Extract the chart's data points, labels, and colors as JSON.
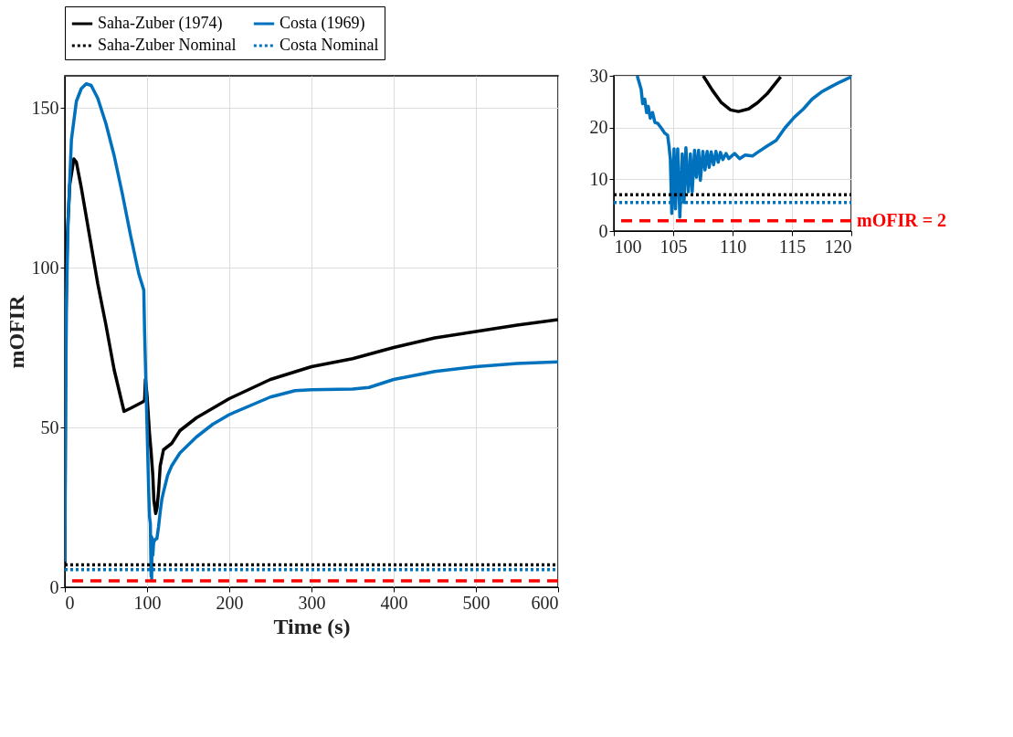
{
  "chart_data": [
    {
      "type": "line",
      "xlabel": "Time (s)",
      "ylabel": "mOFIR",
      "xlim": [
        0,
        600
      ],
      "ylim": [
        0,
        160
      ],
      "xticks": [
        0,
        100,
        200,
        300,
        400,
        500,
        600
      ],
      "yticks": [
        0,
        50,
        100,
        150
      ],
      "grid": true,
      "legend": "top",
      "line_style": "solid",
      "marker": "none",
      "series": [
        {
          "name": "Saha-Zuber (1974)",
          "color": "#000000",
          "x": [
            0,
            1,
            3,
            6,
            11,
            14,
            20,
            30,
            40,
            50,
            60,
            72,
            80,
            95,
            97,
            98,
            100,
            103,
            105,
            107,
            108.3,
            110.5,
            112.1,
            114,
            116,
            120,
            125,
            130,
            140,
            160,
            200,
            250,
            300,
            350,
            400,
            450,
            500,
            550,
            600
          ],
          "values": [
            7,
            80,
            110,
            126,
            134,
            133,
            125,
            110,
            95,
            82,
            68,
            55,
            56,
            58,
            58.5,
            65,
            60,
            48,
            42,
            35,
            27.2,
            23.1,
            24.8,
            30,
            38,
            43,
            44,
            45,
            49,
            53,
            59,
            65,
            69,
            71.5,
            75,
            78,
            80,
            82,
            83.7
          ]
        },
        {
          "name": "Costa (1969)",
          "color": "#0072bd",
          "x": [
            0,
            1,
            2,
            4,
            8,
            14,
            20,
            26,
            32,
            40,
            50,
            60,
            70,
            80,
            90,
            96,
            97,
            99,
            101,
            102,
            103,
            104,
            104.9,
            105.1,
            105.6,
            106,
            107,
            108,
            110,
            112,
            114,
            116,
            118,
            120,
            125,
            130,
            140,
            160,
            180,
            200,
            250,
            280,
            300,
            350,
            370,
            400,
            450,
            500,
            550,
            600
          ],
          "values": [
            8,
            60,
            90,
            115,
            140,
            152,
            156,
            157.5,
            157,
            153,
            145,
            135,
            123,
            110,
            98,
            93,
            80,
            60,
            40,
            30,
            22,
            19.9,
            3.4,
            15.9,
            2.7,
            15.5,
            10,
            14,
            15,
            15.2,
            19,
            23.6,
            27.5,
            29.8,
            35,
            38,
            42,
            47,
            51,
            54,
            59.5,
            61.5,
            61.8,
            62,
            62.5,
            65,
            67.5,
            69,
            70,
            70.5
          ]
        },
        {
          "name": "Saha-Zuber Nominal",
          "color": "#000000",
          "line_style": "dotted",
          "x": [
            0,
            600
          ],
          "values": [
            7,
            7
          ]
        },
        {
          "name": "Costa Nominal",
          "color": "#0072bd",
          "line_style": "dotted",
          "x": [
            0,
            600
          ],
          "values": [
            5.5,
            5.5
          ]
        }
      ],
      "ref_lines": [
        {
          "axis": "y",
          "value": 2,
          "color": "#ff0000",
          "line_style": "dashed"
        }
      ]
    },
    {
      "type": "line",
      "xlim": [
        100,
        120
      ],
      "ylim": [
        0,
        30
      ],
      "xticks": [
        100,
        105,
        110,
        115,
        120
      ],
      "yticks": [
        0,
        10,
        20,
        30
      ],
      "grid": true,
      "legend": false,
      "line_style": "solid",
      "marker": "none",
      "series": [
        {
          "color": "#000000",
          "x": [
            107.53,
            108.3,
            109.06,
            109.83,
            110.5,
            111.35,
            112.1,
            112.9,
            114.05
          ],
          "values": [
            30,
            27.2,
            24.8,
            23.4,
            23.1,
            23.6,
            24.8,
            26.5,
            29.8
          ]
        },
        {
          "color": "#0072bd",
          "x": [
            101.97,
            102.3,
            102.43,
            102.6,
            102.76,
            102.9,
            103.07,
            103.26,
            103.46,
            103.7,
            104.0,
            104.3,
            104.53,
            104.64,
            104.76,
            104.88,
            105.07,
            105.19,
            105.38,
            105.56,
            105.76,
            105.91,
            106.07,
            106.27,
            106.45,
            106.6,
            106.8,
            106.96,
            107.14,
            107.29,
            107.5,
            107.68,
            107.86,
            108.03,
            108.2,
            108.4,
            108.6,
            108.79,
            108.98,
            109.18,
            109.45,
            109.68,
            110.17,
            110.6,
            111.06,
            111.67,
            112.1,
            112.9,
            113.67,
            114.4,
            115.2,
            115.97,
            116.7,
            117.5,
            118.3,
            119.05,
            120
          ],
          "values": [
            30,
            27.4,
            24.6,
            25.5,
            22.9,
            24.1,
            21.8,
            22.9,
            21.0,
            20.8,
            19.9,
            18.9,
            18.5,
            16.6,
            13.9,
            3.4,
            15.9,
            4.3,
            15.9,
            2.7,
            14.9,
            5.5,
            16.1,
            7.6,
            14.9,
            7.6,
            15.6,
            10.4,
            15.6,
            9.8,
            15.4,
            11.8,
            15.4,
            12.3,
            15.3,
            12.8,
            15.4,
            13.3,
            15.2,
            13.8,
            15.0,
            14.0,
            15.0,
            14.0,
            14.7,
            14.5,
            15.2,
            16.4,
            17.5,
            19.9,
            22.0,
            23.6,
            25.5,
            26.9,
            27.9,
            28.8,
            29.8
          ]
        },
        {
          "color": "#000000",
          "line_style": "dotted",
          "x": [
            100,
            120
          ],
          "values": [
            7,
            7
          ]
        },
        {
          "color": "#0072bd",
          "line_style": "dotted",
          "x": [
            100,
            120
          ],
          "values": [
            5.5,
            5.5
          ]
        }
      ],
      "ref_lines": [
        {
          "axis": "y",
          "value": 2,
          "label": "mOFIR = 2",
          "color": "#ff0000",
          "line_style": "dashed"
        }
      ]
    }
  ]
}
